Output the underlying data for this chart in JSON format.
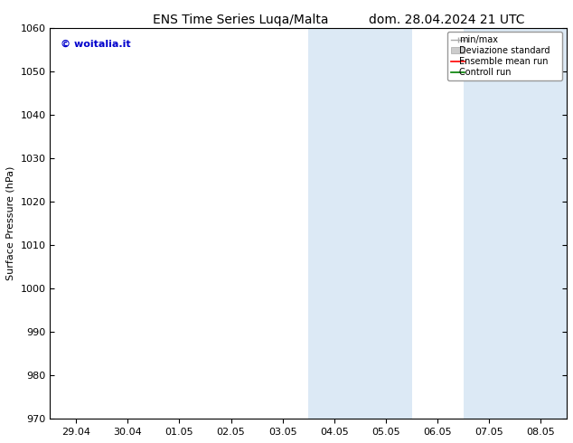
{
  "title_left": "ENS Time Series Luqa/Malta",
  "title_right": "dom. 28.04.2024 21 UTC",
  "ylabel": "Surface Pressure (hPa)",
  "ylim": [
    970,
    1060
  ],
  "yticks": [
    970,
    980,
    990,
    1000,
    1010,
    1020,
    1030,
    1040,
    1050,
    1060
  ],
  "xtick_labels": [
    "29.04",
    "30.04",
    "01.05",
    "02.05",
    "03.05",
    "04.05",
    "05.05",
    "06.05",
    "07.05",
    "08.05"
  ],
  "xtick_positions": [
    0,
    1,
    2,
    3,
    4,
    5,
    6,
    7,
    8,
    9
  ],
  "xlim": [
    -0.5,
    9.5
  ],
  "shaded_regions": [
    {
      "xmin": 4.5,
      "xmax": 6.5,
      "color": "#dce9f5"
    },
    {
      "xmin": 7.5,
      "xmax": 9.5,
      "color": "#dce9f5"
    }
  ],
  "watermark_text": "© woitalia.it",
  "watermark_color": "#0000cc",
  "legend_labels": [
    "min/max",
    "Deviazione standard",
    "Ensemble mean run",
    "Controll run"
  ],
  "legend_colors": [
    "#aaaaaa",
    "#cccccc",
    "#ff0000",
    "#008000"
  ],
  "background_color": "#ffffff",
  "plot_bg_color": "#ffffff",
  "title_fontsize": 10,
  "label_fontsize": 8,
  "tick_fontsize": 8
}
